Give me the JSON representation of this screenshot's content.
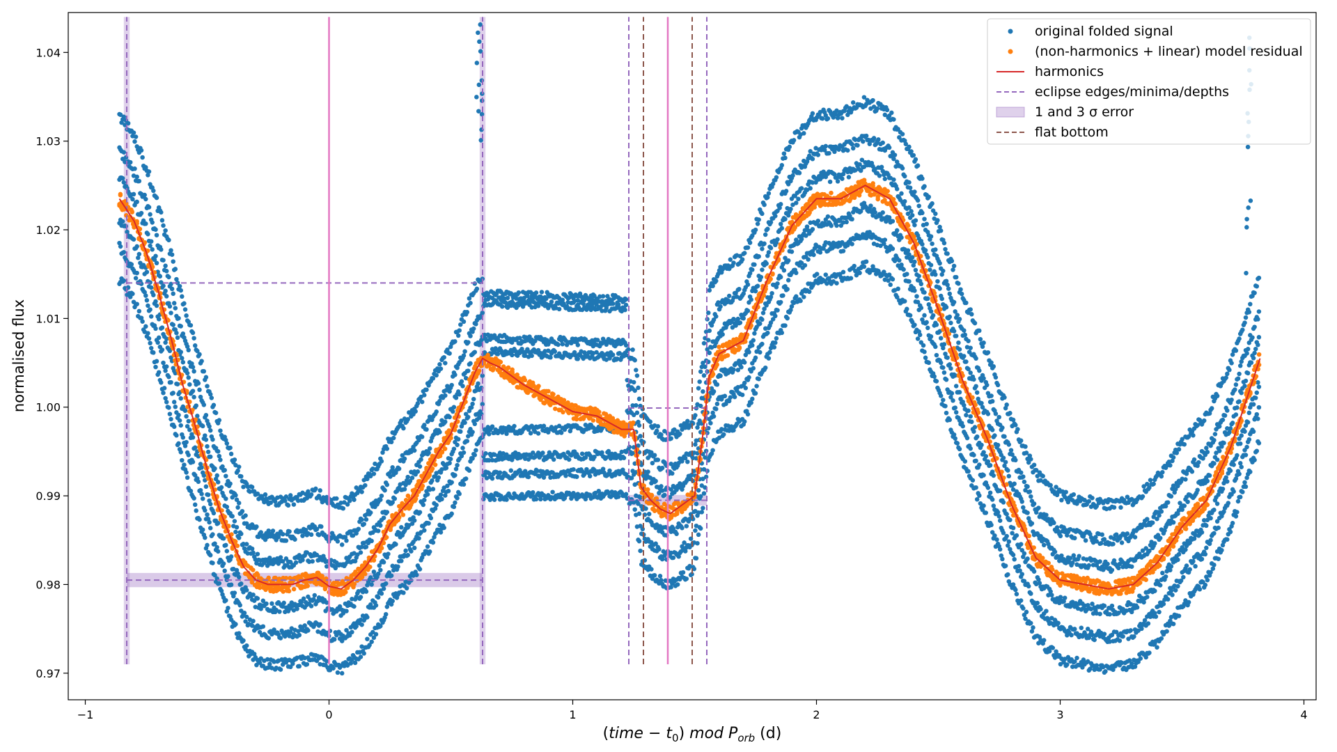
{
  "chart_data": {
    "type": "scatter",
    "xlabel_parts": [
      "(",
      "time",
      " − ",
      "t",
      "0",
      ") ",
      "mod",
      " ",
      "P",
      "orb",
      " (d)"
    ],
    "ylabel": "normalised flux",
    "xlim": [
      -1.07,
      4.05
    ],
    "ylim": [
      0.967,
      1.0445
    ],
    "xticks": [
      -1,
      0,
      1,
      2,
      3,
      4
    ],
    "xtick_labels": [
      "−1",
      "0",
      "1",
      "2",
      "3",
      "4"
    ],
    "yticks": [
      0.97,
      0.98,
      0.99,
      1.0,
      1.01,
      1.02,
      1.03,
      1.04
    ],
    "ytick_labels": [
      "0.97",
      "0.98",
      "0.99",
      "1.00",
      "1.01",
      "1.02",
      "1.03",
      "1.04"
    ],
    "grid": false,
    "legend_position": "upper right",
    "legend": [
      {
        "label": "original folded signal",
        "marker": "dot",
        "color": "#1f77b4"
      },
      {
        "label": "(non-harmonics + linear) model residual",
        "marker": "dot",
        "color": "#ff7f0e"
      },
      {
        "label": "harmonics",
        "marker": "line",
        "color": "#d62728"
      },
      {
        "label": "eclipse edges/minima/depths",
        "marker": "dashed",
        "color": "#9467bd"
      },
      {
        "label": "1 and 3 σ error",
        "marker": "patch",
        "color": "#9467bd"
      },
      {
        "label": "flat bottom",
        "marker": "dashed",
        "color": "#8c564b"
      }
    ],
    "harmonics_curve": {
      "x": [
        -0.86,
        -0.8,
        -0.75,
        -0.7,
        -0.65,
        -0.6,
        -0.55,
        -0.5,
        -0.45,
        -0.4,
        -0.35,
        -0.3,
        -0.25,
        -0.2,
        -0.15,
        -0.1,
        -0.05,
        0.0,
        0.05,
        0.1,
        0.15,
        0.2,
        0.25,
        0.3,
        0.35,
        0.4,
        0.45,
        0.5,
        0.55,
        0.6,
        0.63,
        0.66,
        0.7,
        0.8,
        0.9,
        1.0,
        1.1,
        1.2,
        1.25,
        1.28,
        1.32,
        1.36,
        1.4,
        1.45,
        1.5,
        1.53,
        1.56,
        1.6,
        1.7,
        1.8,
        1.9,
        2.0,
        2.1,
        2.2,
        2.3,
        2.4,
        2.5,
        2.6,
        2.7,
        2.8,
        2.9,
        3.0,
        3.1,
        3.2,
        3.3,
        3.4,
        3.5,
        3.6,
        3.7,
        3.82
      ],
      "y": [
        1.0235,
        1.021,
        1.0175,
        1.013,
        1.008,
        1.0025,
        0.998,
        0.993,
        0.9885,
        0.985,
        0.982,
        0.9805,
        0.98,
        0.98,
        0.98,
        0.9805,
        0.9808,
        0.9798,
        0.9795,
        0.9805,
        0.982,
        0.984,
        0.9868,
        0.9885,
        0.99,
        0.9925,
        0.995,
        0.997,
        1.0005,
        1.004,
        1.0055,
        1.005,
        1.0045,
        1.0025,
        1.001,
        0.9995,
        0.999,
        0.9975,
        0.9975,
        0.991,
        0.9895,
        0.9885,
        0.988,
        0.989,
        0.99,
        0.996,
        1.0035,
        1.006,
        1.0075,
        1.0145,
        1.0205,
        1.0235,
        1.0235,
        1.025,
        1.0235,
        1.0185,
        1.011,
        1.003,
        0.9965,
        0.989,
        0.983,
        0.9805,
        0.98,
        0.9795,
        0.98,
        0.9825,
        0.9865,
        0.9895,
        0.9955,
        1.0055
      ],
      "color": "#d62728"
    },
    "original_signal": {
      "color": "#1f77b4",
      "offset_levels_relative_to_model": [
        -0.009,
        -0.0055,
        -0.0025,
        0.0025,
        0.0055,
        0.0095
      ],
      "dip_section": {
        "x_range": [
          0.63,
          1.22
        ],
        "levels": [
          1.0125,
          1.0115,
          1.0075,
          1.006,
          0.9975,
          0.9945,
          0.9925,
          0.99
        ]
      },
      "spikes": [
        {
          "x": 0.62,
          "y_range": [
            1.028,
            1.044
          ]
        },
        {
          "x": 3.77,
          "y_range": [
            1.015,
            1.044
          ]
        }
      ]
    },
    "eclipse_edges": {
      "color": "#9467bd",
      "vertical_x": [
        -0.83,
        0.63,
        1.23,
        1.55
      ],
      "vertical_y_range": [
        0.971,
        1.044
      ],
      "primary_depth_level": 1.014,
      "primary_depth_x_range": [
        -0.83,
        0.63
      ],
      "primary_bottom_level": 0.9805,
      "primary_bottom_x_range": [
        -0.83,
        0.63
      ],
      "secondary_top_level": 0.9999,
      "secondary_bottom_level": 0.9895,
      "secondary_x_range": [
        1.23,
        1.55
      ]
    },
    "minima_lines": {
      "color": "#e377c2",
      "x": [
        0.0,
        1.39
      ]
    },
    "flat_bottom": {
      "color": "#8c564b",
      "x": [
        1.29,
        1.49
      ]
    },
    "error_bands": {
      "color": "#9467bd",
      "bands": [
        {
          "x": -0.83,
          "axis": "x",
          "halfwidth": 0.012
        },
        {
          "x": 0.63,
          "axis": "x",
          "halfwidth": 0.012
        },
        {
          "y": 0.9805,
          "axis": "y",
          "halfwidth": 0.0008,
          "x_range": [
            -0.83,
            0.63
          ]
        },
        {
          "y": 0.9895,
          "axis": "y",
          "halfwidth": 0.0006,
          "x_range": [
            1.23,
            1.55
          ]
        }
      ]
    }
  }
}
